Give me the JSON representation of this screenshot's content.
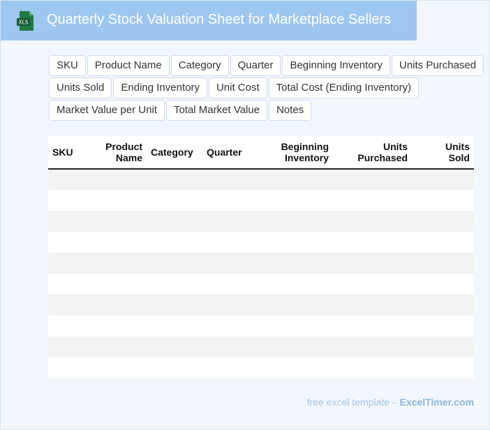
{
  "header": {
    "title": "Quarterly Stock Valuation Sheet for Marketplace Sellers",
    "icon": "xls-file-icon",
    "icon_label": "XLS",
    "icon_color": "#1e7a44"
  },
  "tags": {
    "row1": [
      "SKU",
      "Product Name",
      "Category",
      "Quarter",
      "Beginning Inventory",
      "Units Purchased"
    ],
    "row2": [
      "Units Sold",
      "Ending Inventory",
      "Unit Cost",
      "Total Cost (Ending Inventory)"
    ],
    "row3": [
      "Market Value per Unit",
      "Total Market Value",
      "Notes"
    ]
  },
  "table": {
    "headers": [
      {
        "line1": "SKU",
        "line2": ""
      },
      {
        "line1": "Product",
        "line2": "Name"
      },
      {
        "line1": "Category",
        "line2": ""
      },
      {
        "line1": "Quarter",
        "line2": ""
      },
      {
        "line1": "Beginning",
        "line2": "Inventory"
      },
      {
        "line1": "Units",
        "line2": "Purchased"
      },
      {
        "line1": "Units",
        "line2": "Sold"
      }
    ],
    "row_count": 10
  },
  "footer": {
    "text": "free excel template -",
    "brand": "ExcelTimer.com"
  },
  "colors": {
    "header_bg": "#9ec7ef",
    "page_bg": "#f2f7fd",
    "stripe": "#f3f3f3",
    "footer_text": "#a6c4e0"
  }
}
